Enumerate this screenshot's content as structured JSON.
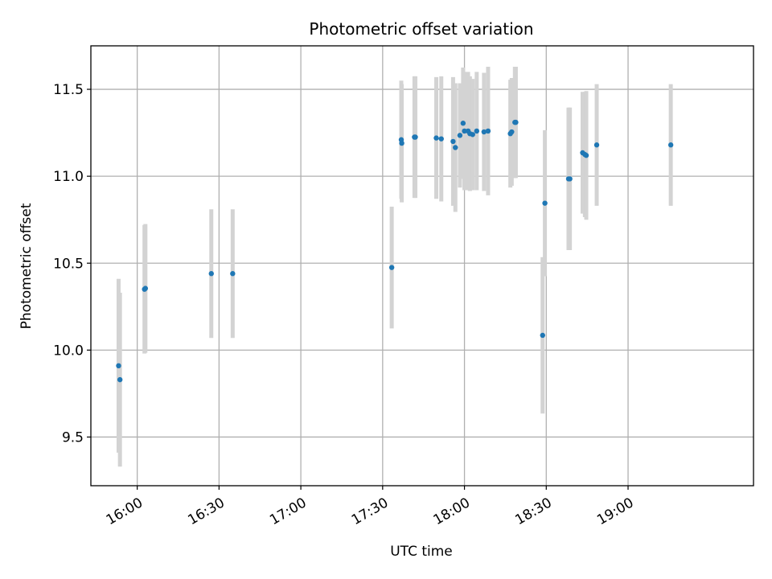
{
  "chart_data": {
    "type": "scatter",
    "title": "Photometric offset variation",
    "xlabel": "UTC time",
    "ylabel": "Photometric offset",
    "grid": true,
    "xlim": [
      "15:43",
      "19:46"
    ],
    "ylim": [
      9.22,
      11.75
    ],
    "xticks": [
      "16:00",
      "16:30",
      "17:00",
      "17:30",
      "18:00",
      "18:30",
      "19:00"
    ],
    "yticks": [
      9.5,
      10.0,
      10.5,
      11.0,
      11.5
    ],
    "colors": {
      "points": "#1f77b4",
      "errorbars": "#d3d3d3",
      "grid": "#b0b0b0"
    },
    "points": [
      {
        "x": "15:53:10",
        "y": 9.91,
        "err": 0.5
      },
      {
        "x": "15:53:40",
        "y": 9.83,
        "err": 0.5
      },
      {
        "x": "16:02:40",
        "y": 10.35,
        "err": 0.37
      },
      {
        "x": "16:03:00",
        "y": 10.355,
        "err": 0.37
      },
      {
        "x": "16:27:10",
        "y": 10.44,
        "err": 0.37
      },
      {
        "x": "16:35:00",
        "y": 10.44,
        "err": 0.37
      },
      {
        "x": "17:33:20",
        "y": 10.475,
        "err": 0.35
      },
      {
        "x": "17:36:50",
        "y": 11.21,
        "err": 0.34
      },
      {
        "x": "17:37:00",
        "y": 11.19,
        "err": 0.34
      },
      {
        "x": "17:41:40",
        "y": 11.225,
        "err": 0.35
      },
      {
        "x": "17:42:00",
        "y": 11.225,
        "err": 0.35
      },
      {
        "x": "17:49:40",
        "y": 11.22,
        "err": 0.35
      },
      {
        "x": "17:51:30",
        "y": 11.215,
        "err": 0.36
      },
      {
        "x": "17:55:50",
        "y": 11.2,
        "err": 0.37
      },
      {
        "x": "17:56:40",
        "y": 11.165,
        "err": 0.37
      },
      {
        "x": "17:58:20",
        "y": 11.235,
        "err": 0.3
      },
      {
        "x": "17:59:30",
        "y": 11.305,
        "err": 0.32
      },
      {
        "x": "18:00:00",
        "y": 11.26,
        "err": 0.34
      },
      {
        "x": "18:01:20",
        "y": 11.26,
        "err": 0.34
      },
      {
        "x": "18:02:00",
        "y": 11.245,
        "err": 0.33
      },
      {
        "x": "18:03:00",
        "y": 11.24,
        "err": 0.32
      },
      {
        "x": "18:04:30",
        "y": 11.26,
        "err": 0.34
      },
      {
        "x": "18:07:10",
        "y": 11.255,
        "err": 0.34
      },
      {
        "x": "18:08:40",
        "y": 11.26,
        "err": 0.37
      },
      {
        "x": "18:16:50",
        "y": 11.245,
        "err": 0.31
      },
      {
        "x": "18:17:20",
        "y": 11.255,
        "err": 0.31
      },
      {
        "x": "18:18:30",
        "y": 11.31,
        "err": 0.32
      },
      {
        "x": "18:18:50",
        "y": 11.31,
        "err": 0.32
      },
      {
        "x": "18:28:40",
        "y": 10.085,
        "err": 0.45
      },
      {
        "x": "18:29:30",
        "y": 10.845,
        "err": 0.42
      },
      {
        "x": "18:38:10",
        "y": 10.985,
        "err": 0.41
      },
      {
        "x": "18:38:40",
        "y": 10.985,
        "err": 0.41
      },
      {
        "x": "18:43:20",
        "y": 11.135,
        "err": 0.35
      },
      {
        "x": "18:44:10",
        "y": 11.125,
        "err": 0.36
      },
      {
        "x": "18:44:40",
        "y": 11.12,
        "err": 0.37
      },
      {
        "x": "18:48:30",
        "y": 11.18,
        "err": 0.35
      },
      {
        "x": "19:15:40",
        "y": 11.18,
        "err": 0.35
      }
    ]
  }
}
